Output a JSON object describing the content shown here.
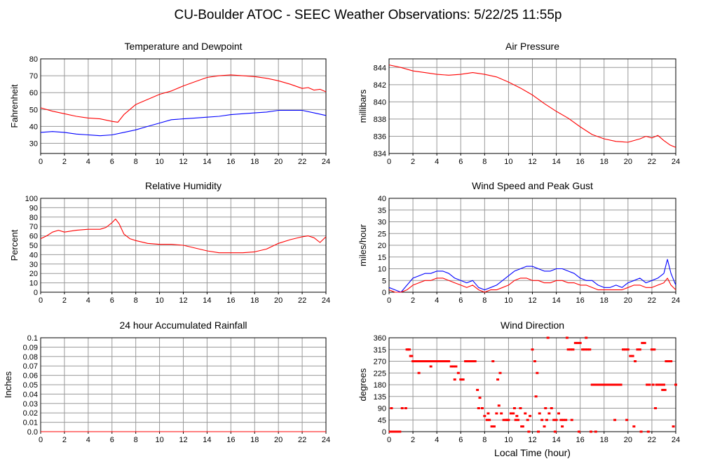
{
  "page_title": "CU-Boulder ATOC - SEEC Weather Observations: 5/22/25 11:55p",
  "colors": {
    "red": "#ff0000",
    "blue": "#0000ff",
    "grid": "#999999",
    "frame": "#000000"
  },
  "chart_data": [
    {
      "id": "temp",
      "type": "line",
      "title": "Temperature and Dewpoint",
      "xlabel": "",
      "ylabel": "Fahrenheit",
      "xlim": [
        0,
        24
      ],
      "ylim": [
        24,
        80
      ],
      "x_ticks": [
        0,
        2,
        4,
        6,
        8,
        10,
        12,
        14,
        16,
        18,
        20,
        22,
        24
      ],
      "y_ticks": [
        30,
        40,
        50,
        60,
        70,
        80
      ],
      "series": [
        {
          "color": "#ff0000",
          "x": [
            0,
            1,
            2,
            3,
            4,
            5,
            6,
            6.5,
            7,
            8,
            9,
            10,
            11,
            12,
            13,
            14,
            15,
            16,
            17,
            18,
            19,
            20,
            21,
            22,
            22.5,
            23,
            23.5,
            24
          ],
          "values": [
            51,
            49,
            47.5,
            46,
            45,
            44.5,
            43,
            42.5,
            47,
            53,
            56,
            59,
            61,
            64,
            66.5,
            69,
            70,
            70.5,
            70,
            69.5,
            68.5,
            67,
            65,
            62.5,
            63,
            61.5,
            62,
            60.5
          ]
        },
        {
          "color": "#0000ff",
          "x": [
            0,
            1,
            2,
            3,
            4,
            5,
            6,
            7,
            8,
            9,
            10,
            11,
            12,
            13,
            14,
            15,
            16,
            17,
            18,
            19,
            20,
            21,
            22,
            23,
            24
          ],
          "values": [
            36.5,
            37,
            36.5,
            35.5,
            35,
            34.5,
            35,
            36.5,
            38,
            40,
            42,
            44,
            44.5,
            45,
            45.5,
            46,
            47,
            47.5,
            48,
            48.5,
            49.5,
            49.5,
            49.5,
            48,
            46.5
          ]
        }
      ]
    },
    {
      "id": "pressure",
      "type": "line",
      "title": "Air Pressure",
      "xlabel": "",
      "ylabel": "millibars",
      "xlim": [
        0,
        24
      ],
      "ylim": [
        834,
        845
      ],
      "x_ticks": [
        0,
        2,
        4,
        6,
        8,
        10,
        12,
        14,
        16,
        18,
        20,
        22,
        24
      ],
      "y_ticks": [
        834,
        836,
        838,
        840,
        842,
        844
      ],
      "series": [
        {
          "color": "#ff0000",
          "x": [
            0,
            1,
            2,
            3,
            4,
            5,
            6,
            7,
            8,
            9,
            10,
            11,
            12,
            13,
            14,
            15,
            16,
            17,
            18,
            19,
            20,
            21,
            21.5,
            22,
            22.5,
            23,
            23.5,
            24
          ],
          "values": [
            844.3,
            844,
            843.6,
            843.4,
            843.2,
            843.1,
            843.2,
            843.4,
            843.2,
            842.9,
            842.3,
            841.6,
            840.8,
            839.8,
            838.9,
            838.1,
            837.1,
            836.2,
            835.7,
            835.4,
            835.3,
            835.7,
            836,
            835.8,
            836.1,
            835.5,
            835,
            834.7
          ]
        }
      ]
    },
    {
      "id": "humidity",
      "type": "line",
      "title": "Relative Humidity",
      "xlabel": "",
      "ylabel": "Percent",
      "xlim": [
        0,
        24
      ],
      "ylim": [
        0,
        100
      ],
      "x_ticks": [
        0,
        2,
        4,
        6,
        8,
        10,
        12,
        14,
        16,
        18,
        20,
        22,
        24
      ],
      "y_ticks": [
        0,
        10,
        20,
        30,
        40,
        50,
        60,
        70,
        80,
        90,
        100
      ],
      "series": [
        {
          "color": "#ff0000",
          "x": [
            0,
            0.5,
            1,
            1.5,
            2,
            3,
            4,
            5,
            5.5,
            6,
            6.3,
            6.6,
            7,
            7.5,
            8,
            9,
            10,
            11,
            12,
            13,
            14,
            15,
            16,
            17,
            18,
            19,
            20,
            21,
            22,
            22.5,
            23,
            23.5,
            24
          ],
          "values": [
            57,
            60,
            64,
            66,
            64,
            66,
            67,
            67,
            69,
            74,
            78,
            73,
            62,
            57,
            55,
            52,
            51,
            51,
            50,
            47,
            44,
            42,
            42,
            42,
            43,
            46,
            52,
            56,
            59,
            60,
            58,
            53,
            59
          ]
        }
      ]
    },
    {
      "id": "wind",
      "type": "line",
      "title": "Wind Speed and Peak Gust",
      "xlabel": "",
      "ylabel": "miles/hour",
      "xlim": [
        0,
        24
      ],
      "ylim": [
        0,
        40
      ],
      "x_ticks": [
        0,
        2,
        4,
        6,
        8,
        10,
        12,
        14,
        16,
        18,
        20,
        22,
        24
      ],
      "y_ticks": [
        0,
        5,
        10,
        15,
        20,
        25,
        30,
        35,
        40
      ],
      "series": [
        {
          "color": "#0000ff",
          "x": [
            0,
            0.5,
            1,
            1.5,
            2,
            2.5,
            3,
            3.5,
            4,
            4.5,
            5,
            5.5,
            6,
            6.5,
            7,
            7.5,
            8,
            8.5,
            9,
            9.5,
            10,
            10.5,
            11,
            11.5,
            12,
            12.5,
            13,
            13.5,
            14,
            14.5,
            15,
            15.5,
            16,
            16.5,
            17,
            17.5,
            18,
            18.5,
            19,
            19.5,
            20,
            20.5,
            21,
            21.5,
            22,
            22.5,
            23,
            23.3,
            23.6,
            24
          ],
          "values": [
            2,
            1,
            0,
            3,
            6,
            7,
            8,
            8,
            9,
            9,
            8,
            6,
            5,
            4,
            5,
            2,
            1,
            2,
            3,
            5,
            7,
            9,
            10,
            11,
            11,
            10,
            9,
            9,
            10,
            10,
            9,
            8,
            6,
            5,
            5,
            3,
            2,
            2,
            3,
            2,
            4,
            5,
            6,
            4,
            5,
            6,
            8,
            14,
            8,
            3
          ]
        },
        {
          "color": "#ff0000",
          "x": [
            0,
            0.5,
            1,
            1.5,
            2,
            2.5,
            3,
            3.5,
            4,
            4.5,
            5,
            5.5,
            6,
            6.5,
            7,
            7.5,
            8,
            8.5,
            9,
            9.5,
            10,
            10.5,
            11,
            11.5,
            12,
            12.5,
            13,
            13.5,
            14,
            14.5,
            15,
            15.5,
            16,
            16.5,
            17,
            17.5,
            18,
            18.5,
            19,
            19.5,
            20,
            20.5,
            21,
            21.5,
            22,
            22.5,
            23,
            23.3,
            23.6,
            24
          ],
          "values": [
            1,
            0,
            0,
            1,
            3,
            4,
            5,
            5,
            6,
            6,
            5,
            4,
            3,
            2,
            3,
            1,
            0,
            1,
            1,
            2,
            3,
            5,
            6,
            6,
            5,
            5,
            4,
            4,
            5,
            5,
            4,
            4,
            3,
            3,
            2,
            1,
            1,
            1,
            1,
            1,
            2,
            3,
            3,
            2,
            2,
            3,
            4,
            6,
            3,
            1
          ]
        }
      ]
    },
    {
      "id": "rain",
      "type": "line",
      "title": "24 hour Accumulated Rainfall",
      "xlabel": "",
      "ylabel": "Inches",
      "xlim": [
        0,
        24
      ],
      "ylim": [
        0,
        0.1
      ],
      "x_ticks": [
        0,
        2,
        4,
        6,
        8,
        10,
        12,
        14,
        16,
        18,
        20,
        22,
        24
      ],
      "y_ticks": [
        "0.0",
        "0.01",
        "0.02",
        "0.03",
        "0.04",
        "0.05",
        "0.06",
        "0.07",
        "0.08",
        "0.09",
        "0.1"
      ],
      "series": [
        {
          "color": "#ff0000",
          "x": [
            0,
            24
          ],
          "values": [
            0,
            0
          ]
        }
      ]
    },
    {
      "id": "direction",
      "type": "scatter",
      "title": "Wind Direction",
      "xlabel": "Local Time (hour)",
      "ylabel": "degrees",
      "xlim": [
        0,
        24
      ],
      "ylim": [
        0,
        360
      ],
      "x_ticks": [
        0,
        2,
        4,
        6,
        8,
        10,
        12,
        14,
        16,
        18,
        20,
        22,
        24
      ],
      "y_ticks": [
        0,
        45,
        90,
        135,
        180,
        225,
        270,
        315,
        360
      ],
      "series": [
        {
          "color": "#ff0000",
          "x": [
            0.1,
            0.3,
            0.5,
            0.7,
            0.9,
            1.1,
            0.2,
            1.4,
            1.5,
            1.6,
            1.7,
            1.8,
            1.9,
            2.0,
            2.2,
            2.4,
            2.6,
            2.8,
            3.0,
            3.2,
            3.4,
            3.6,
            3.8,
            4.0,
            4.2,
            4.4,
            4.6,
            4.8,
            5.0,
            5.2,
            5.4,
            5.6,
            5.8,
            6.0,
            6.2,
            6.4,
            6.6,
            6.8,
            7.0,
            7.2,
            7.4,
            7.6,
            7.8,
            8.0,
            8.2,
            8.4,
            8.6,
            8.8,
            9.0,
            9.2,
            9.4,
            9.6,
            9.8,
            10.0,
            10.2,
            10.4,
            10.6,
            10.8,
            11.0,
            11.2,
            11.4,
            11.6,
            11.8,
            12.0,
            12.2,
            12.4,
            12.6,
            12.8,
            13.0,
            13.2,
            13.4,
            13.6,
            13.8,
            14.0,
            14.2,
            14.4,
            14.6,
            14.8,
            15.0,
            15.2,
            15.4,
            15.6,
            15.8,
            16.0,
            16.2,
            16.4,
            16.6,
            16.8,
            17.0,
            17.2,
            17.4,
            17.6,
            17.8,
            18.0,
            18.2,
            18.4,
            18.6,
            18.8,
            19.0,
            19.2,
            19.4,
            19.6,
            19.8,
            20.0,
            20.2,
            20.4,
            20.6,
            20.8,
            21.0,
            21.2,
            21.4,
            21.6,
            21.8,
            22.0,
            22.2,
            22.4,
            22.6,
            22.8,
            23.0,
            23.2,
            23.4,
            23.6,
            23.8,
            24.0,
            8.3,
            8.7,
            9.3,
            9.9,
            10.5,
            11.1,
            11.7,
            12.5,
            13.3,
            13.9,
            14.5,
            15.3,
            16.5,
            17.3,
            18.9,
            20.5,
            21.7,
            22.3,
            22.9,
            2.5,
            3.5,
            5.5,
            6.1,
            7.5,
            9.1,
            10.7,
            12.3,
            13.1,
            14.9,
            15.9,
            16.9,
            19.9,
            21.1,
            22.1,
            23.1
          ],
          "values": [
            0,
            0,
            0,
            0,
            0,
            90,
            90,
            90,
            315,
            315,
            315,
            290,
            290,
            270,
            270,
            270,
            270,
            270,
            270,
            270,
            270,
            270,
            270,
            270,
            270,
            270,
            270,
            270,
            270,
            250,
            250,
            250,
            225,
            200,
            200,
            270,
            270,
            270,
            270,
            270,
            160,
            130,
            90,
            60,
            45,
            45,
            20,
            20,
            70,
            100,
            70,
            45,
            45,
            45,
            70,
            70,
            45,
            45,
            90,
            20,
            70,
            45,
            60,
            315,
            270,
            225,
            70,
            45,
            20,
            45,
            70,
            90,
            45,
            45,
            70,
            45,
            45,
            45,
            315,
            315,
            315,
            340,
            340,
            340,
            315,
            315,
            315,
            315,
            180,
            180,
            180,
            180,
            180,
            180,
            180,
            180,
            180,
            180,
            180,
            180,
            180,
            315,
            315,
            315,
            290,
            290,
            270,
            315,
            315,
            340,
            340,
            180,
            180,
            315,
            315,
            180,
            180,
            180,
            180,
            270,
            270,
            270,
            20,
            180,
            70,
            270,
            225,
            45,
            90,
            20,
            0,
            0,
            360,
            0,
            20,
            45,
            360,
            0,
            45,
            20,
            0,
            90,
            160,
            225,
            250,
            200,
            200,
            90,
            200,
            60,
            135,
            90,
            360,
            0,
            0,
            45,
            0,
            180,
            160
          ]
        }
      ]
    }
  ]
}
